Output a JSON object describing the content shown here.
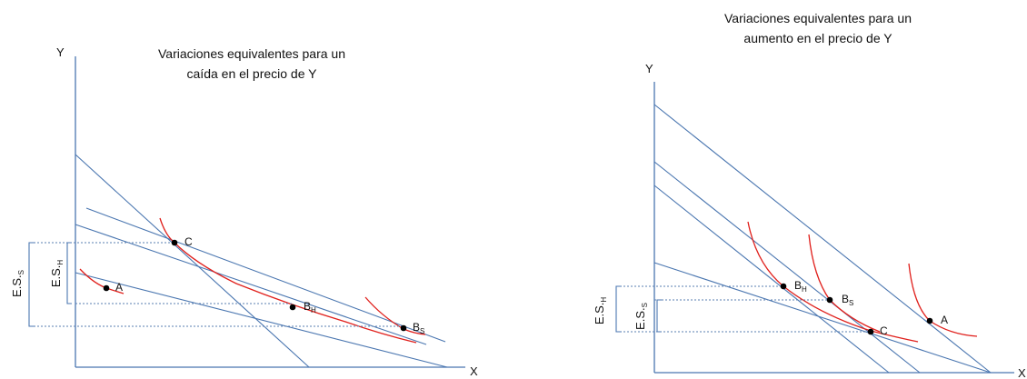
{
  "left": {
    "title_line1": "Variaciones equivalentes para un",
    "title_line2": "caída en el precio de Y",
    "y_axis_label": "Y",
    "x_axis_label": "X",
    "points": [
      {
        "label": "C",
        "sub": ""
      },
      {
        "label": "A",
        "sub": ""
      },
      {
        "label": "B",
        "sub": "H"
      },
      {
        "label": "B",
        "sub": "S"
      }
    ],
    "es_labels": [
      {
        "main": "E.S.",
        "sub": "S"
      },
      {
        "main": "E.S.",
        "sub": "H"
      }
    ]
  },
  "right": {
    "title_line1": "Variaciones equivalentes para un",
    "title_line2": "aumento en el precio de Y",
    "y_axis_label": "Y",
    "x_axis_label": "X",
    "points": [
      {
        "label": "B",
        "sub": "H"
      },
      {
        "label": "B",
        "sub": "S"
      },
      {
        "label": "C",
        "sub": ""
      },
      {
        "label": "A",
        "sub": ""
      }
    ],
    "es_labels": [
      {
        "main": "E.S.",
        "sub": "H"
      },
      {
        "main": "E.S.",
        "sub": "S"
      }
    ]
  },
  "colors": {
    "axis": "#4a76b0",
    "budget_line": "#4a76b0",
    "indifference_curve": "#e0201c",
    "point": "#000000"
  }
}
